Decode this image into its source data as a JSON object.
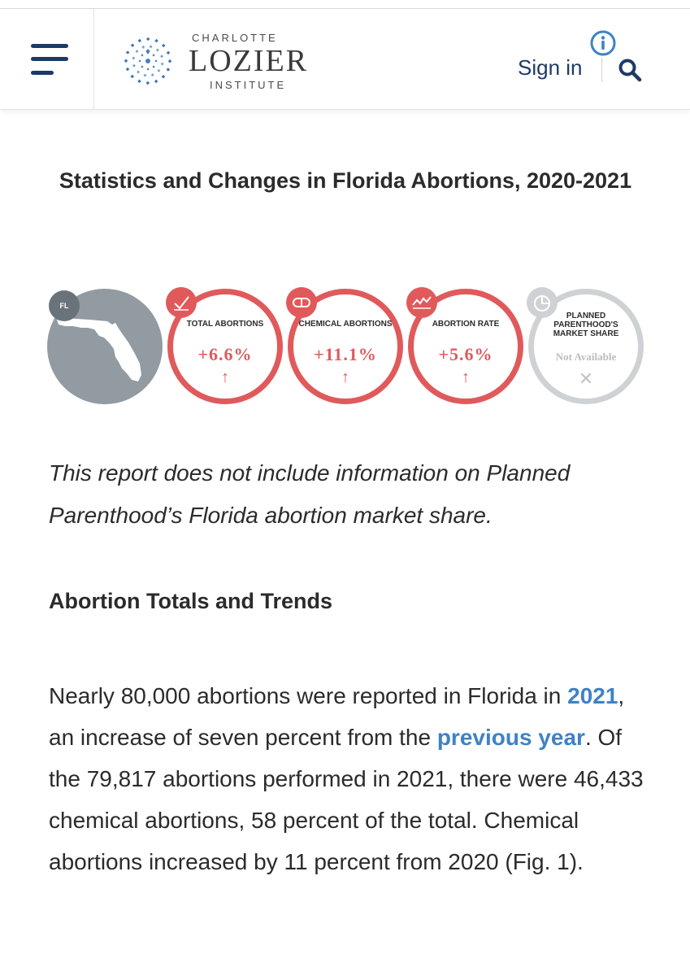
{
  "header": {
    "logo": {
      "line1": "CHARLOTTE",
      "line2": "LOZIER",
      "line3": "INSTITUTE"
    },
    "sign_in": "Sign in",
    "icons": [
      "menu-icon",
      "info-icon",
      "search-icon"
    ]
  },
  "article": {
    "title": "Statistics and Changes in Florida Abortions, 2020-2021",
    "stats": {
      "state_badge": "FL",
      "items": [
        {
          "label": "TOTAL ABORTIONS",
          "value": "+6.6%",
          "arrow": "↑",
          "icon": "checkmark-icon"
        },
        {
          "label": "CHEMICAL ABORTIONS",
          "value": "+11.1%",
          "arrow": "↑",
          "icon": "pill-icon"
        },
        {
          "label": "ABORTION RATE",
          "value": "+5.6%",
          "arrow": "↑",
          "icon": "trend-line-icon"
        },
        {
          "label": "PLANNED PARENTHOOD'S MARKET SHARE",
          "value": "Not Available",
          "arrow": "✕",
          "icon": "pie-chart-icon"
        }
      ]
    },
    "note": "This report does not include information on Planned Parenthood’s Florida abortion market share.",
    "section_heading": "Abortion Totals and Trends",
    "paragraph": {
      "part1": "Nearly 80,000 abortions were reported in Florida in ",
      "link1": "2021",
      "part2": ", an increase of seven percent from the ",
      "link2": "previous year",
      "part3": ". Of the 79,817 abortions performed in 2021, there were 46,433 chemical abortions, 58 percent of the total. Chemical abortions increased by 11 percent from 2020 (Fig. 1)."
    }
  },
  "colors": {
    "accent_red": "#e05a5c",
    "navy": "#1d3a66",
    "link_blue": "#3f82c4",
    "grey": "#929aa2"
  }
}
